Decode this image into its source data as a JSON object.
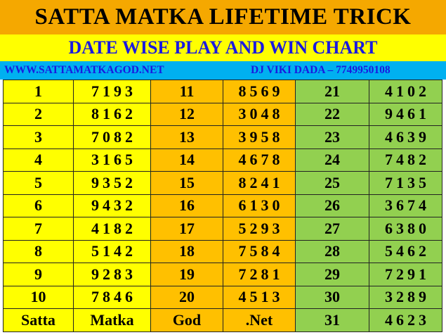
{
  "header": {
    "title": "SATTA MATKA LIFETIME TRICK",
    "subtitle": "DATE WISE PLAY AND WIN CHART",
    "website": "WWW.SATTAMATKAGOD.NET",
    "contact": "DJ VIKI DADA – 7749950108"
  },
  "colors": {
    "title_bg": "#f5a800",
    "subtitle_bg": "#ffff00",
    "info_bg": "#00b0f0",
    "info_text": "#1a1ae0",
    "col_group_1": "#ffff00",
    "col_group_2": "#ffc000",
    "col_group_3": "#92d050"
  },
  "rows": [
    {
      "d1": "1",
      "n1": "7193",
      "d2": "11",
      "n2": "8569",
      "d3": "21",
      "n3": "4102"
    },
    {
      "d1": "2",
      "n1": "8162",
      "d2": "12",
      "n2": "3048",
      "d3": "22",
      "n3": "9461"
    },
    {
      "d1": "3",
      "n1": "7082",
      "d2": "13",
      "n2": "3958",
      "d3": "23",
      "n3": "4639"
    },
    {
      "d1": "4",
      "n1": "3165",
      "d2": "14",
      "n2": "4678",
      "d3": "24",
      "n3": "7482"
    },
    {
      "d1": "5",
      "n1": "9352",
      "d2": "15",
      "n2": "8241",
      "d3": "25",
      "n3": "7135"
    },
    {
      "d1": "6",
      "n1": "9432",
      "d2": "16",
      "n2": "6130",
      "d3": "26",
      "n3": "3674"
    },
    {
      "d1": "7",
      "n1": "4182",
      "d2": "17",
      "n2": "5293",
      "d3": "27",
      "n3": "6380"
    },
    {
      "d1": "8",
      "n1": "5142",
      "d2": "18",
      "n2": "7584",
      "d3": "28",
      "n3": "5462"
    },
    {
      "d1": "9",
      "n1": "9283",
      "d2": "19",
      "n2": "7281",
      "d3": "29",
      "n3": "7291"
    },
    {
      "d1": "10",
      "n1": "7846",
      "d2": "20",
      "n2": "4513",
      "d3": "30",
      "n3": "3289"
    }
  ],
  "footer": {
    "c1": "Satta",
    "c2": "Matka",
    "c3": "God",
    "c4": ".Net",
    "c5": "31",
    "c6": "4623"
  }
}
